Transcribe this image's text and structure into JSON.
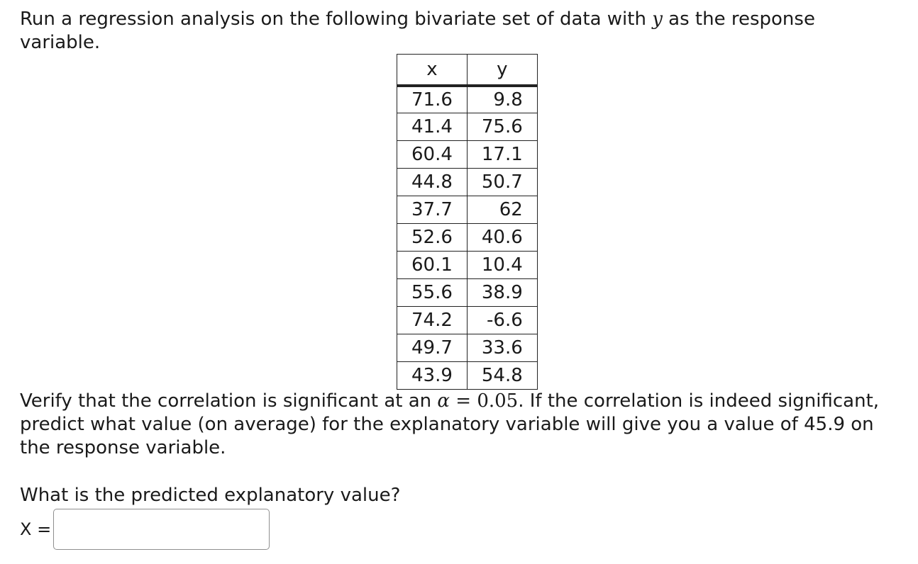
{
  "intro": {
    "text_before": "Run a regression analysis on the following bivariate set of data with ",
    "var": "y",
    "text_after": " as the response variable."
  },
  "table": {
    "headers": [
      "x",
      "y"
    ],
    "rows": [
      [
        "71.6",
        "9.8"
      ],
      [
        "41.4",
        "75.6"
      ],
      [
        "60.4",
        "17.1"
      ],
      [
        "44.8",
        "50.7"
      ],
      [
        "37.7",
        "62"
      ],
      [
        "52.6",
        "40.6"
      ],
      [
        "60.1",
        "10.4"
      ],
      [
        "55.6",
        "38.9"
      ],
      [
        "74.2",
        "-6.6"
      ],
      [
        "49.7",
        "33.6"
      ],
      [
        "43.9",
        "54.8"
      ]
    ]
  },
  "verify": {
    "text_before": "Verify that the correlation is significant at an ",
    "alpha_symbol": "α",
    "equals": " = ",
    "alpha_value": "0.05",
    "text_after": ". If the correlation is indeed significant, predict what value (on average) for the explanatory variable will give you a value of 45.9 on the response variable."
  },
  "question": "What is the predicted explanatory value?",
  "answer": {
    "label": "X =",
    "value": "",
    "placeholder": ""
  }
}
